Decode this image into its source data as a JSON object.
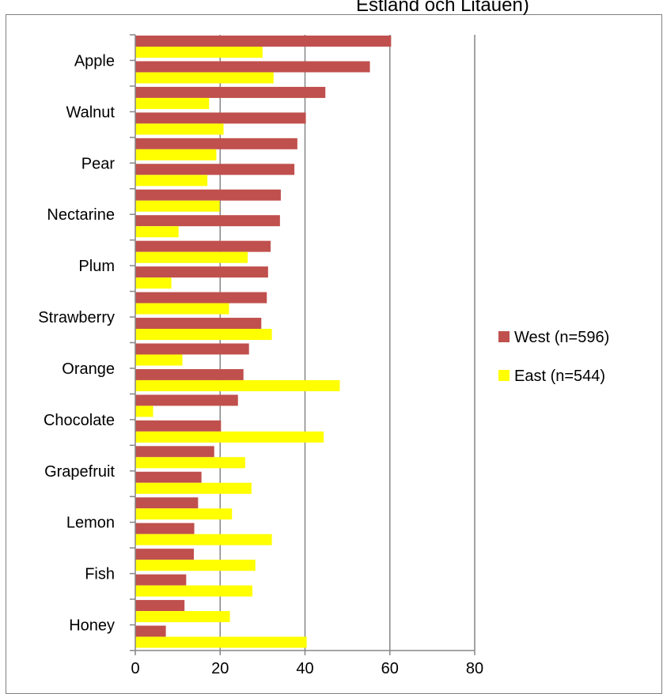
{
  "chart_data": {
    "type": "bar",
    "orientation": "horizontal",
    "title": "Estland och Litauen)",
    "xlabel": "",
    "ylabel": "",
    "xlim": [
      0,
      80
    ],
    "x_ticks": [
      0,
      20,
      40,
      60,
      80
    ],
    "grid": "vertical major gridlines",
    "legend_position": "right",
    "category_labels": [
      "Apple",
      "Walnut",
      "Pear",
      "Nectarine",
      "Plum",
      "Strawberry",
      "Orange",
      "Chocolate",
      "Grapefruit",
      "Lemon",
      "Fish",
      "Honey"
    ],
    "bar_groups": 24,
    "series": [
      {
        "name": "West (n=596)",
        "color": "#c0504d",
        "values": [
          60.3,
          55.3,
          44.8,
          40.2,
          38.2,
          37.5,
          34.3,
          34.1,
          31.9,
          31.3,
          31.0,
          29.7,
          26.8,
          25.5,
          24.2,
          20.2,
          18.6,
          15.6,
          14.8,
          13.9,
          13.8,
          12.0,
          11.6,
          7.2
        ]
      },
      {
        "name": "East (n=544)",
        "color": "#ffff00",
        "values": [
          30.0,
          32.6,
          17.4,
          20.8,
          19.1,
          17.0,
          19.9,
          10.2,
          26.5,
          8.5,
          22.1,
          32.2,
          11.1,
          48.2,
          4.2,
          44.4,
          25.9,
          27.4,
          22.8,
          32.2,
          28.3,
          27.6,
          22.3,
          40.4
        ]
      }
    ]
  }
}
